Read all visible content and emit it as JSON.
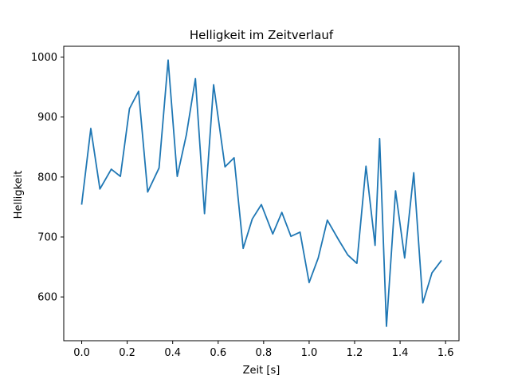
{
  "chart_data": {
    "type": "line",
    "title": "Helligkeit im Zeitverlauf",
    "xlabel": "Zeit [s]",
    "ylabel": "Helligkeit",
    "xlim": [
      -0.079,
      1.659
    ],
    "ylim": [
      527,
      1018
    ],
    "xticks": [
      0.0,
      0.2,
      0.4,
      0.6,
      0.8,
      1.0,
      1.2,
      1.4,
      1.6
    ],
    "xtick_labels": [
      "0.0",
      "0.2",
      "0.4",
      "0.6",
      "0.8",
      "1.0",
      "1.2",
      "1.4",
      "1.6"
    ],
    "yticks": [
      600,
      700,
      800,
      900,
      1000
    ],
    "ytick_labels": [
      "600",
      "700",
      "800",
      "900",
      "1000"
    ],
    "grid": false,
    "series": [
      {
        "color": "#1f77b4",
        "x": [
          0.0,
          0.04,
          0.08,
          0.13,
          0.17,
          0.21,
          0.25,
          0.29,
          0.34,
          0.38,
          0.42,
          0.46,
          0.5,
          0.54,
          0.58,
          0.63,
          0.67,
          0.71,
          0.75,
          0.79,
          0.84,
          0.88,
          0.92,
          0.96,
          1.0,
          1.04,
          1.08,
          1.13,
          1.17,
          1.21,
          1.25,
          1.29,
          1.31,
          1.34,
          1.38,
          1.42,
          1.46,
          1.5,
          1.54,
          1.58
        ],
        "y": [
          755,
          881,
          780,
          813,
          801,
          914,
          943,
          775,
          815,
          995,
          801,
          870,
          964,
          739,
          954,
          817,
          832,
          681,
          730,
          754,
          705,
          741,
          701,
          708,
          624,
          665,
          728,
          695,
          670,
          656,
          818,
          686,
          864,
          551,
          777,
          665,
          807,
          590,
          640,
          660
        ]
      }
    ]
  }
}
